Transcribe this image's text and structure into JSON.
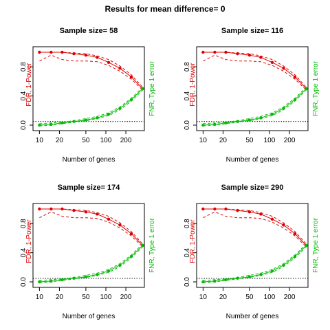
{
  "title": "Results for mean difference= 0",
  "chart_data": [
    {
      "type": "line",
      "title": "Sample size= 58",
      "xlabel": "Number of genes",
      "ylabel_left": "FDR, 1-Power",
      "ylabel_right": "FNR, Type 1 error",
      "x_scale": "log",
      "xlim": [
        8,
        380
      ],
      "ylim": [
        0,
        1
      ],
      "xticks": [
        10,
        20,
        50,
        100,
        200
      ],
      "yticks": [
        0.0,
        0.4,
        0.8
      ],
      "reference_line": 0.05,
      "x": [
        10,
        15,
        22,
        33,
        50,
        74,
        110,
        163,
        242,
        358
      ],
      "series": [
        {
          "color": "#dd0000",
          "style": "points-solid",
          "values": [
            1.0,
            1.0,
            1.0,
            0.98,
            0.96,
            0.93,
            0.86,
            0.78,
            0.66,
            0.5
          ]
        },
        {
          "color": "#dd0000",
          "style": "dashed",
          "values": [
            1.0,
            1.0,
            1.0,
            0.99,
            0.98,
            0.95,
            0.9,
            0.81,
            0.69,
            0.52
          ]
        },
        {
          "color": "#dd0000",
          "style": "dashed",
          "values": [
            0.88,
            0.96,
            0.9,
            0.88,
            0.88,
            0.87,
            0.82,
            0.74,
            0.63,
            0.48
          ]
        },
        {
          "color": "#00bb00",
          "style": "points-solid",
          "values": [
            0.0,
            0.01,
            0.03,
            0.05,
            0.07,
            0.1,
            0.15,
            0.23,
            0.35,
            0.5
          ]
        },
        {
          "color": "#00bb00",
          "style": "dashed",
          "values": [
            0.02,
            0.03,
            0.04,
            0.06,
            0.09,
            0.12,
            0.17,
            0.25,
            0.37,
            0.52
          ]
        },
        {
          "color": "#00bb00",
          "style": "dashed",
          "values": [
            -0.01,
            0.0,
            0.02,
            0.04,
            0.06,
            0.09,
            0.13,
            0.21,
            0.33,
            0.48
          ]
        }
      ]
    },
    {
      "type": "line",
      "title": "Sample size= 116",
      "xlabel": "Number of genes",
      "ylabel_left": "FDR, 1-Power",
      "ylabel_right": "FNR, Type 1 error",
      "x_scale": "log",
      "xlim": [
        8,
        380
      ],
      "ylim": [
        0,
        1
      ],
      "xticks": [
        10,
        20,
        50,
        100,
        200
      ],
      "yticks": [
        0.0,
        0.4,
        0.8
      ],
      "reference_line": 0.05,
      "x": [
        10,
        15,
        22,
        33,
        50,
        74,
        110,
        163,
        242,
        358
      ],
      "series": [
        {
          "color": "#dd0000",
          "style": "points-solid",
          "values": [
            1.0,
            1.0,
            1.0,
            0.98,
            0.96,
            0.93,
            0.86,
            0.78,
            0.66,
            0.5
          ]
        },
        {
          "color": "#dd0000",
          "style": "dashed",
          "values": [
            1.0,
            1.0,
            1.0,
            0.99,
            0.98,
            0.95,
            0.9,
            0.81,
            0.69,
            0.52
          ]
        },
        {
          "color": "#dd0000",
          "style": "dashed",
          "values": [
            0.88,
            0.96,
            0.9,
            0.88,
            0.88,
            0.87,
            0.82,
            0.74,
            0.63,
            0.48
          ]
        },
        {
          "color": "#00bb00",
          "style": "points-solid",
          "values": [
            0.0,
            0.01,
            0.03,
            0.05,
            0.07,
            0.1,
            0.15,
            0.23,
            0.35,
            0.5
          ]
        },
        {
          "color": "#00bb00",
          "style": "dashed",
          "values": [
            0.02,
            0.03,
            0.04,
            0.06,
            0.09,
            0.12,
            0.17,
            0.25,
            0.37,
            0.52
          ]
        },
        {
          "color": "#00bb00",
          "style": "dashed",
          "values": [
            -0.01,
            0.0,
            0.02,
            0.04,
            0.06,
            0.09,
            0.13,
            0.21,
            0.33,
            0.48
          ]
        }
      ]
    },
    {
      "type": "line",
      "title": "Sample size= 174",
      "xlabel": "Number of genes",
      "ylabel_left": "FDR, 1-Power",
      "ylabel_right": "FNR, Type 1 error",
      "x_scale": "log",
      "xlim": [
        8,
        380
      ],
      "ylim": [
        0,
        1
      ],
      "xticks": [
        10,
        20,
        50,
        100,
        200
      ],
      "yticks": [
        0.0,
        0.4,
        0.8
      ],
      "reference_line": 0.05,
      "x": [
        10,
        15,
        22,
        33,
        50,
        74,
        110,
        163,
        242,
        358
      ],
      "series": [
        {
          "color": "#dd0000",
          "style": "points-solid",
          "values": [
            1.0,
            1.0,
            1.0,
            0.98,
            0.96,
            0.93,
            0.86,
            0.78,
            0.66,
            0.5
          ]
        },
        {
          "color": "#dd0000",
          "style": "dashed",
          "values": [
            1.0,
            1.0,
            1.0,
            0.99,
            0.98,
            0.95,
            0.9,
            0.81,
            0.69,
            0.52
          ]
        },
        {
          "color": "#dd0000",
          "style": "dashed",
          "values": [
            0.88,
            0.96,
            0.9,
            0.88,
            0.88,
            0.87,
            0.82,
            0.74,
            0.63,
            0.48
          ]
        },
        {
          "color": "#00bb00",
          "style": "points-solid",
          "values": [
            0.0,
            0.01,
            0.03,
            0.05,
            0.07,
            0.1,
            0.15,
            0.23,
            0.35,
            0.5
          ]
        },
        {
          "color": "#00bb00",
          "style": "dashed",
          "values": [
            0.02,
            0.03,
            0.04,
            0.06,
            0.09,
            0.12,
            0.17,
            0.25,
            0.37,
            0.52
          ]
        },
        {
          "color": "#00bb00",
          "style": "dashed",
          "values": [
            -0.01,
            0.0,
            0.02,
            0.04,
            0.06,
            0.09,
            0.13,
            0.21,
            0.33,
            0.48
          ]
        }
      ]
    },
    {
      "type": "line",
      "title": "Sample size= 290",
      "xlabel": "Number of genes",
      "ylabel_left": "FDR, 1-Power",
      "ylabel_right": "FNR, Type 1 error",
      "x_scale": "log",
      "xlim": [
        8,
        380
      ],
      "ylim": [
        0,
        1
      ],
      "xticks": [
        10,
        20,
        50,
        100,
        200
      ],
      "yticks": [
        0.0,
        0.4,
        0.8
      ],
      "reference_line": 0.05,
      "x": [
        10,
        15,
        22,
        33,
        50,
        74,
        110,
        163,
        242,
        358
      ],
      "series": [
        {
          "color": "#dd0000",
          "style": "points-solid",
          "values": [
            1.0,
            1.0,
            1.0,
            0.98,
            0.96,
            0.93,
            0.86,
            0.78,
            0.66,
            0.5
          ]
        },
        {
          "color": "#dd0000",
          "style": "dashed",
          "values": [
            1.0,
            1.0,
            1.0,
            0.99,
            0.98,
            0.95,
            0.9,
            0.81,
            0.69,
            0.52
          ]
        },
        {
          "color": "#dd0000",
          "style": "dashed",
          "values": [
            0.88,
            0.96,
            0.9,
            0.88,
            0.88,
            0.87,
            0.82,
            0.74,
            0.63,
            0.48
          ]
        },
        {
          "color": "#00bb00",
          "style": "points-solid",
          "values": [
            0.0,
            0.01,
            0.03,
            0.05,
            0.07,
            0.1,
            0.15,
            0.23,
            0.35,
            0.5
          ]
        },
        {
          "color": "#00bb00",
          "style": "dashed",
          "values": [
            0.02,
            0.03,
            0.04,
            0.06,
            0.09,
            0.12,
            0.17,
            0.25,
            0.37,
            0.52
          ]
        },
        {
          "color": "#00bb00",
          "style": "dashed",
          "values": [
            -0.01,
            0.0,
            0.02,
            0.04,
            0.06,
            0.09,
            0.13,
            0.21,
            0.33,
            0.48
          ]
        }
      ]
    }
  ]
}
